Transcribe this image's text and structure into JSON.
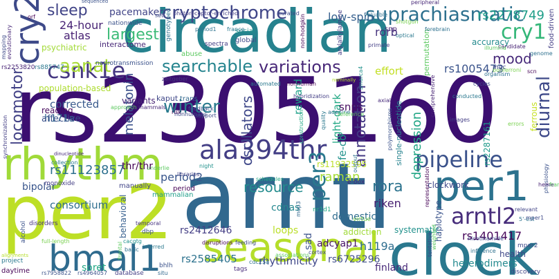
{
  "words": [
    {
      "text": "rs2305160",
      "color": "#3b0f70"
    },
    {
      "text": "arntl",
      "color": "#31688e"
    },
    {
      "text": "circadian",
      "color": "#26828e"
    },
    {
      "text": "per2",
      "color": "#bddf26"
    },
    {
      "text": "clock",
      "color": "#2a788e"
    },
    {
      "text": "seasonal",
      "color": "#b5de2b"
    },
    {
      "text": "rhythm",
      "color": "#a0da39"
    },
    {
      "text": "per1",
      "color": "#2c728e"
    },
    {
      "text": "cry2",
      "color": "#3e4a89"
    },
    {
      "text": "bmal1",
      "color": "#2f6b8e"
    },
    {
      "text": "ala394thr",
      "color": "#433e85"
    },
    {
      "text": "cry1",
      "color": "#35b779"
    },
    {
      "text": "suprachiasmatic",
      "color": "#2d708e"
    },
    {
      "text": "arntl2",
      "color": "#472d7b"
    },
    {
      "text": "pipeline",
      "color": "#3b528b"
    },
    {
      "text": "csnk1e",
      "color": "#453781"
    },
    {
      "text": "cryptochrome",
      "color": "#404688"
    },
    {
      "text": "per3",
      "color": "#2a788e"
    },
    {
      "text": "winter",
      "color": "#297b8e"
    },
    {
      "text": "variations",
      "color": "#482878"
    },
    {
      "text": "searchable",
      "color": "#25848e"
    },
    {
      "text": "aanat",
      "color": "#a8db34"
    },
    {
      "text": "sleep",
      "color": "#414487"
    },
    {
      "text": "diurnal",
      "color": "#3e4989"
    },
    {
      "text": "annotation",
      "color": "#443983"
    },
    {
      "text": "mood",
      "color": "#472a7a"
    },
    {
      "text": "rs2278749",
      "color": "#1f9e89"
    },
    {
      "text": "depression",
      "color": "#21a685"
    },
    {
      "text": "oscillators",
      "color": "#3f4889"
    },
    {
      "text": "largest",
      "color": "#3aba76"
    },
    {
      "text": "rora",
      "color": "#2c738e"
    },
    {
      "text": "rs1005473",
      "color": "#3a538b"
    },
    {
      "text": "resource",
      "color": "#228b8d"
    },
    {
      "text": "rs11123857",
      "color": "#2d708e"
    },
    {
      "text": "locomotor",
      "color": "#424186"
    },
    {
      "text": "rs1401417",
      "color": "#450559"
    },
    {
      "text": "low-spin",
      "color": "#355f8d"
    },
    {
      "text": "melatonin",
      "color": "#3b518b"
    },
    {
      "text": "raman",
      "color": "#a5db36"
    },
    {
      "text": "24-hour",
      "color": "#482475"
    },
    {
      "text": "atlas",
      "color": "#482173"
    },
    {
      "text": "rorb",
      "color": "#46337e"
    },
    {
      "text": "period2",
      "color": "#39568c"
    },
    {
      "text": "corrected",
      "color": "#38598c"
    },
    {
      "text": "consortium",
      "color": "#2e6e8e"
    },
    {
      "text": "riken",
      "color": "#482071"
    },
    {
      "text": "rhythmicity",
      "color": "#3f4788"
    },
    {
      "text": "rs2585405",
      "color": "#2c728e"
    },
    {
      "text": "rs6725296",
      "color": "#3e4c8a"
    },
    {
      "text": "heterodimers",
      "color": "#23898e"
    },
    {
      "text": "finland",
      "color": "#482979"
    },
    {
      "text": "h119a",
      "color": "#2e6d8e"
    },
    {
      "text": "bipolar",
      "color": "#39558c"
    },
    {
      "text": "adcyap1",
      "color": "#471365"
    },
    {
      "text": "rs2412646",
      "color": "#433d84"
    },
    {
      "text": "effort",
      "color": "#c2df23"
    },
    {
      "text": "light-dark",
      "color": "#22a884"
    },
    {
      "text": "reward",
      "color": "#1fa088"
    },
    {
      "text": "snps",
      "color": "#470e61"
    },
    {
      "text": "fe-co",
      "color": "#21918c"
    },
    {
      "text": "sad",
      "color": "#3b528b"
    },
    {
      "text": "pacemaker",
      "color": "#414487"
    },
    {
      "text": "soret",
      "color": "#22a785"
    },
    {
      "text": "h171a",
      "color": "#32648e"
    },
    {
      "text": "thr/thr",
      "color": "#440154"
    },
    {
      "text": "domestic",
      "color": "#2f6c8e"
    },
    {
      "text": "cdnas",
      "color": "#24878e"
    },
    {
      "text": "loops",
      "color": "#bade28"
    },
    {
      "text": "clockwork",
      "color": "#3e4a89"
    },
    {
      "text": "affective",
      "color": "#3b528b"
    },
    {
      "text": "reading",
      "color": "#460a5d"
    },
    {
      "text": "variants",
      "color": "#482576"
    },
    {
      "text": "kaput",
      "color": "#3f4788"
    },
    {
      "text": "behavioral",
      "color": "#355e8d"
    },
    {
      "text": "rs2287161",
      "color": "#1e9b8a"
    },
    {
      "text": "ferrous",
      "color": "#c5e021"
    },
    {
      "text": "single-nucleotide",
      "color": "#26828e"
    },
    {
      "text": "haplotype",
      "color": "#3a538b"
    },
    {
      "text": "addiction",
      "color": "#a0da39"
    },
    {
      "text": "systematic",
      "color": "#21918c"
    },
    {
      "text": "health",
      "color": "#3f4889"
    },
    {
      "text": "accuracy",
      "color": "#238a8d"
    },
    {
      "text": "permutation",
      "color": "#5ec962"
    },
    {
      "text": "psychiatric",
      "color": "#a2da37"
    },
    {
      "text": "population-based",
      "color": "#addc30"
    },
    {
      "text": "rs11932595",
      "color": "#bade28"
    },
    {
      "text": "interactome",
      "color": "#482878"
    },
    {
      "text": "rs2253820",
      "color": "#482475"
    },
    {
      "text": "rs885747",
      "color": "#2a788e"
    },
    {
      "text": "neurotransmission",
      "color": "#3b528b"
    },
    {
      "text": "genotyped",
      "color": "#2d708e"
    },
    {
      "text": "abuse",
      "color": "#5ec962"
    },
    {
      "text": "social",
      "color": "#21918c"
    },
    {
      "text": "global",
      "color": "#3e4a89"
    },
    {
      "text": "spectra",
      "color": "#433e85"
    },
    {
      "text": "snp",
      "color": "#482475"
    },
    {
      "text": "mammalian",
      "color": "#1f9e89"
    },
    {
      "text": "manually",
      "color": "#414487"
    },
    {
      "text": "nr1d1",
      "color": "#22a884"
    },
    {
      "text": "trans",
      "color": "#31688e"
    },
    {
      "text": "period",
      "color": "#440154"
    },
    {
      "text": "dbp",
      "color": "#3b528b"
    },
    {
      "text": "monoxide",
      "color": "#433e85"
    },
    {
      "text": "disorders",
      "color": "#46337e"
    },
    {
      "text": "alcohol",
      "color": "#3b528b"
    },
    {
      "text": "project",
      "color": "#2a788e"
    },
    {
      "text": "daytime",
      "color": "#440154"
    },
    {
      "text": "rs7958822",
      "color": "#3b528b"
    },
    {
      "text": "rs4964057",
      "color": "#3b528b"
    },
    {
      "text": "database",
      "color": "#433e85"
    },
    {
      "text": "situ",
      "color": "#31688e"
    },
    {
      "text": "tags",
      "color": "#472a7a"
    },
    {
      "text": "discovery",
      "color": "#414487"
    },
    {
      "text": "bhlh",
      "color": "#3b528b"
    },
    {
      "text": "cacgtg",
      "color": "#21918c"
    },
    {
      "text": "basic",
      "color": "#2d708e"
    },
    {
      "text": "frontal",
      "color": "#5ec962"
    },
    {
      "text": "full-length",
      "color": "#7ad151"
    },
    {
      "text": "alignments",
      "color": "#b5de2b"
    },
    {
      "text": "associations",
      "color": "#5ec962"
    },
    {
      "text": "cortex",
      "color": "#3e4a89"
    },
    {
      "text": "mop3",
      "color": "#31688e"
    },
    {
      "text": "e-box",
      "color": "#482878"
    },
    {
      "text": "virtue",
      "color": "#7ad151"
    },
    {
      "text": "physiology",
      "color": "#3b528b"
    },
    {
      "text": "heme",
      "color": "#482475"
    },
    {
      "text": "relevant",
      "color": "#414487"
    },
    {
      "text": "5'-est",
      "color": "#2c728e"
    },
    {
      "text": "mper2",
      "color": "#3e4a89"
    },
    {
      "text": "nicotinamide",
      "color": "#3e4989"
    },
    {
      "text": "cdc25a",
      "color": "#2d708e"
    },
    {
      "text": "disruptions",
      "color": "#440154"
    },
    {
      "text": "temporal",
      "color": "#46337e"
    },
    {
      "text": "inferred",
      "color": "#2a788e"
    },
    {
      "text": "feeding",
      "color": "#3e4a89"
    },
    {
      "text": "night",
      "color": "#21918c"
    },
    {
      "text": "schedules",
      "color": "#22a884"
    },
    {
      "text": "underlie",
      "color": "#5ec962"
    },
    {
      "text": "libraries",
      "color": "#414487"
    },
    {
      "text": "collection",
      "color": "#2a788e"
    },
    {
      "text": "dinucleotide",
      "color": "#472a7a"
    },
    {
      "text": "synchronization",
      "color": "#433e85"
    },
    {
      "text": "evolutionary",
      "color": "#482878"
    },
    {
      "text": "mapping",
      "color": "#3e4a89"
    },
    {
      "text": "orf",
      "color": "#440154"
    },
    {
      "text": "sequenced",
      "color": "#3b528b"
    },
    {
      "text": "nationwide",
      "color": "#3b528b"
    },
    {
      "text": "set",
      "color": "#3e4a89"
    },
    {
      "text": "photoreceptor-enriched",
      "color": "#433e85"
    },
    {
      "text": "curated",
      "color": "#3e4a89"
    },
    {
      "text": "arylalkylamine",
      "color": "#433e85"
    },
    {
      "text": "valuable",
      "color": "#2d708e"
    },
    {
      "text": "peripheral",
      "color": "#482878"
    },
    {
      "text": "shotgun",
      "color": "#7ad151"
    },
    {
      "text": "forebrain",
      "color": "#2d708e"
    },
    {
      "text": "food-driven",
      "color": "#433e85"
    },
    {
      "text": "france",
      "color": "#2a788e"
    },
    {
      "text": "period1",
      "color": "#2c728e"
    },
    {
      "text": "non-hodgkin",
      "color": "#440154"
    },
    {
      "text": "primate",
      "color": "#433e85"
    },
    {
      "text": "optical",
      "color": "#2a788e"
    },
    {
      "text": "candidate",
      "color": "#482475"
    },
    {
      "text": "illumina",
      "color": "#5ec962"
    },
    {
      "text": "genome",
      "color": "#2d708e"
    },
    {
      "text": "bonferroni",
      "color": "#7ad151"
    },
    {
      "text": "scn",
      "color": "#440154"
    },
    {
      "text": "organism",
      "color": "#2d708e"
    },
    {
      "text": "cycles",
      "color": "#3e4a89"
    },
    {
      "text": "conducted",
      "color": "#2a788e"
    },
    {
      "text": "comprehensive",
      "color": "#482475"
    },
    {
      "text": "images",
      "color": "#433e85"
    },
    {
      "text": "errors",
      "color": "#7ad151"
    },
    {
      "text": "smarca4",
      "color": "#21918c"
    },
    {
      "text": "axial",
      "color": "#472a7a"
    },
    {
      "text": "adenine",
      "color": "#2c728e"
    },
    {
      "text": "polymorphisms",
      "color": "#3b528b"
    },
    {
      "text": "quality",
      "color": "#2a788e"
    },
    {
      "text": "construction",
      "color": "#22a884"
    },
    {
      "text": "reference",
      "color": "#5ec962"
    },
    {
      "text": "nominally",
      "color": "#b5de2b"
    },
    {
      "text": "hybridization",
      "color": "#433e85"
    },
    {
      "text": "output",
      "color": "#2d708e"
    },
    {
      "text": "zeitgeber",
      "color": "#46337e"
    },
    {
      "text": "nonhuman",
      "color": "#440154"
    },
    {
      "text": "approach",
      "color": "#5ec962"
    },
    {
      "text": "mammals",
      "color": "#482878"
    },
    {
      "text": "risk",
      "color": "#440154"
    },
    {
      "text": "support",
      "color": "#3e4a89"
    },
    {
      "text": "frames",
      "color": "#5ec962"
    },
    {
      "text": "influence",
      "color": "#2d708e"
    },
    {
      "text": "tentative",
      "color": "#3e4a89"
    },
    {
      "text": "representation",
      "color": "#440154"
    },
    {
      "text": "weighted",
      "color": "#5ec962"
    },
    {
      "text": "mper1",
      "color": "#3e4a89"
    },
    {
      "text": "automated",
      "color": "#2a788e"
    },
    {
      "text": "nonhumans",
      "color": "#3e4a89"
    },
    {
      "text": "feedback",
      "color": "#3b528b"
    },
    {
      "text": "mgc",
      "color": "#3e4a89"
    }
  ]
}
